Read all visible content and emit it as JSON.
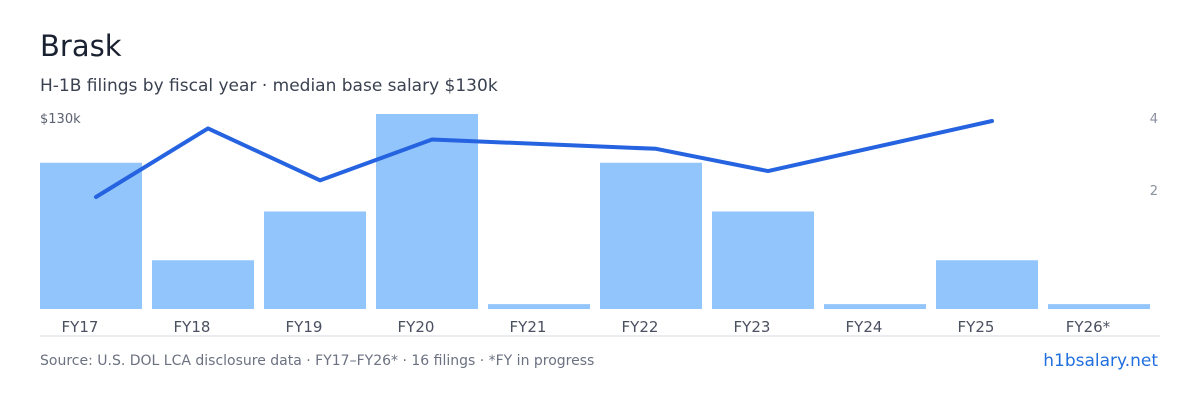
{
  "header": {
    "title": "Brask",
    "subtitle": "H-1B filings by fiscal year · median base salary $130k"
  },
  "footer": {
    "source": "Source: U.S. DOL LCA disclosure data · FY17–FY26* · 16 filings · *FY in progress",
    "link": "h1bsalary.net"
  },
  "colors": {
    "bar": "#92c5fb",
    "line": "#2563e0",
    "axis": "#d5d9e0"
  },
  "chart_data": {
    "type": "bar",
    "categories": [
      "FY17",
      "FY18",
      "FY19",
      "FY20",
      "FY21",
      "FY22",
      "FY23",
      "FY24",
      "FY25",
      "FY26*"
    ],
    "series": [
      {
        "type": "bar",
        "axis": "right",
        "values": [
          3,
          1,
          2,
          4,
          0.1,
          3,
          2,
          0.1,
          1,
          0.1
        ]
      },
      {
        "type": "line",
        "axis": "left",
        "values": [
          89,
          126,
          98,
          120,
          null,
          115,
          103,
          null,
          130,
          null
        ]
      }
    ],
    "right_axis": {
      "ticks": [
        2,
        4
      ],
      "tick_labels": [
        "2",
        "4"
      ],
      "range": [
        0,
        4
      ]
    },
    "left_axis": {
      "ticks": [
        130
      ],
      "tick_labels": [
        "$130k"
      ],
      "range": [
        0,
        130
      ]
    },
    "grid": false,
    "legend": "none"
  }
}
